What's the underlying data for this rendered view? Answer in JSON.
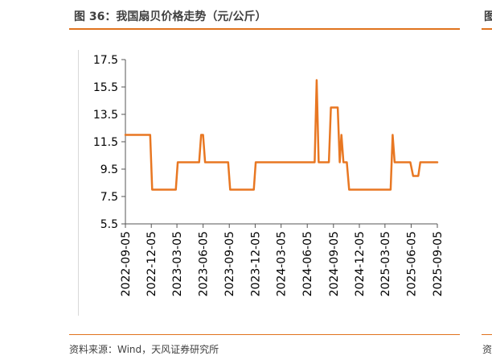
{
  "header": {
    "title": "图 36：我国扇贝价格走势（元/公斤）",
    "edge_title": "图"
  },
  "footer": {
    "source": "资料来源：Wind，天风证券研究所",
    "edge_source": "资"
  },
  "colors": {
    "accent": "#e0731e",
    "series": "#e87722",
    "axis": "#555555"
  },
  "chart_data": {
    "type": "line",
    "title": "",
    "xlabel": "",
    "ylabel": "",
    "ylim": [
      5.5,
      17.5
    ],
    "yticks": [
      "5.5",
      "7.5",
      "9.5",
      "11.5",
      "13.5",
      "15.5",
      "17.5"
    ],
    "xticks": [
      "2022-09-05",
      "2022-12-05",
      "2023-03-05",
      "2023-06-05",
      "2023-09-05",
      "2023-12-05",
      "2024-03-05",
      "2024-06-05",
      "2024-09-05",
      "2024-12-05",
      "2025-03-05",
      "2025-06-05",
      "2025-09-05"
    ],
    "grid": false,
    "legend": "none",
    "series": [
      {
        "name": "",
        "points": [
          [
            "2022-09-05",
            12
          ],
          [
            "2022-12-01",
            12
          ],
          [
            "2022-12-08",
            8
          ],
          [
            "2023-03-01",
            8
          ],
          [
            "2023-03-08",
            10
          ],
          [
            "2023-05-22",
            10
          ],
          [
            "2023-05-29",
            12
          ],
          [
            "2023-06-05",
            12
          ],
          [
            "2023-06-12",
            10
          ],
          [
            "2023-09-01",
            10
          ],
          [
            "2023-09-08",
            8
          ],
          [
            "2023-11-30",
            8
          ],
          [
            "2023-12-07",
            10
          ],
          [
            "2024-07-01",
            10
          ],
          [
            "2024-07-08",
            16
          ],
          [
            "2024-07-15",
            10
          ],
          [
            "2024-08-20",
            10
          ],
          [
            "2024-08-27",
            14
          ],
          [
            "2024-09-20",
            14
          ],
          [
            "2024-09-27",
            10
          ],
          [
            "2024-10-03",
            12
          ],
          [
            "2024-10-10",
            10
          ],
          [
            "2024-10-22",
            10
          ],
          [
            "2024-10-30",
            8
          ],
          [
            "2025-03-25",
            8
          ],
          [
            "2025-04-01",
            12
          ],
          [
            "2025-04-08",
            10
          ],
          [
            "2025-06-02",
            10
          ],
          [
            "2025-06-12",
            9
          ],
          [
            "2025-06-30",
            9
          ],
          [
            "2025-07-07",
            10
          ],
          [
            "2025-09-05",
            10
          ]
        ]
      }
    ]
  }
}
